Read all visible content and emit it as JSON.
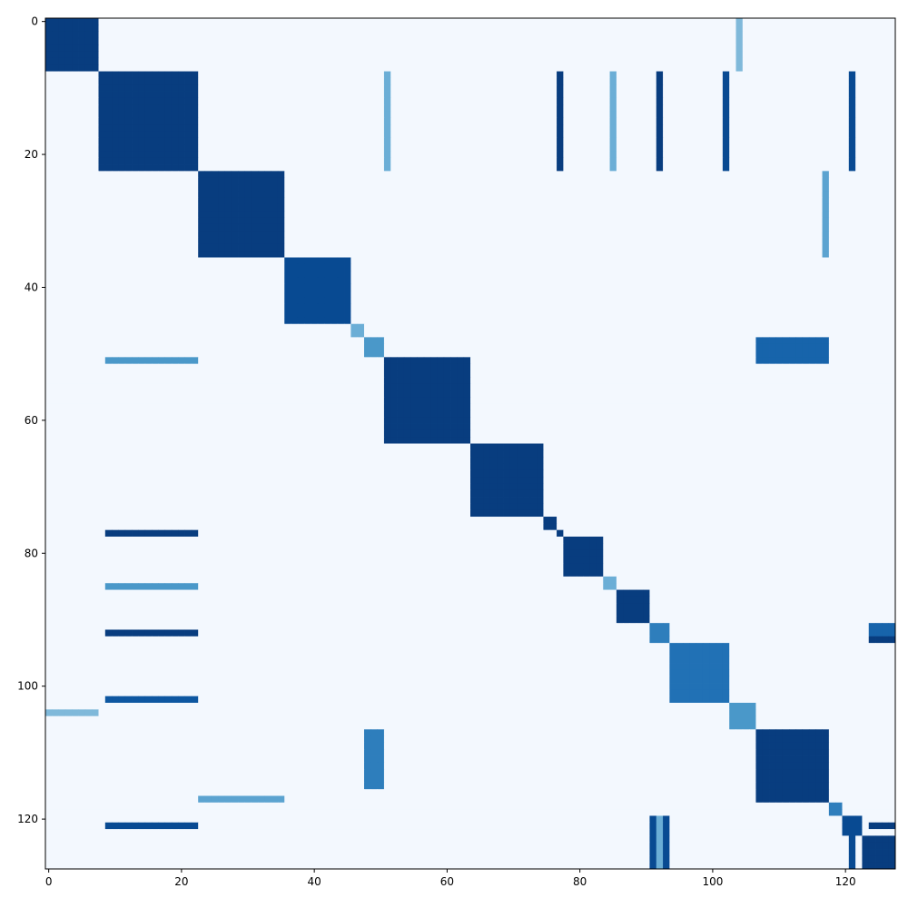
{
  "chart_data": {
    "type": "heatmap",
    "title": "",
    "xlabel": "",
    "ylabel": "",
    "n_rows": 128,
    "n_cols": 128,
    "colormap": "Blues",
    "color_min": "#f7fbff",
    "color_max": "#08306b",
    "value_range": [
      0,
      1
    ],
    "x_ticks": [
      0,
      20,
      40,
      60,
      80,
      100,
      120
    ],
    "y_ticks": [
      0,
      20,
      40,
      60,
      80,
      100,
      120
    ],
    "x_tick_labels": [
      "0",
      "20",
      "40",
      "60",
      "80",
      "100",
      "120"
    ],
    "y_tick_labels": [
      "0",
      "20",
      "40",
      "60",
      "80",
      "100",
      "120"
    ],
    "xlim": [
      -0.5,
      127.5
    ],
    "ylim": [
      127.5,
      -0.5
    ],
    "background_value": 0.02,
    "blocks": [
      {
        "start": 0,
        "end": 8,
        "value": 0.95
      },
      {
        "start": 8,
        "end": 23,
        "value": 0.95
      },
      {
        "start": 23,
        "end": 36,
        "value": 0.95
      },
      {
        "start": 36,
        "end": 46,
        "value": 0.9
      },
      {
        "start": 46,
        "end": 48,
        "value": 0.5
      },
      {
        "start": 48,
        "end": 51,
        "value": 0.6
      },
      {
        "start": 51,
        "end": 64,
        "value": 0.95
      },
      {
        "start": 64,
        "end": 75,
        "value": 0.95
      },
      {
        "start": 75,
        "end": 77,
        "value": 0.95
      },
      {
        "start": 77,
        "end": 78,
        "value": 0.95
      },
      {
        "start": 78,
        "end": 84,
        "value": 0.95
      },
      {
        "start": 84,
        "end": 86,
        "value": 0.5
      },
      {
        "start": 86,
        "end": 91,
        "value": 0.95
      },
      {
        "start": 91,
        "end": 94,
        "value": 0.7
      },
      {
        "start": 94,
        "end": 103,
        "value": 0.75
      },
      {
        "start": 103,
        "end": 107,
        "value": 0.6
      },
      {
        "start": 107,
        "end": 118,
        "value": 0.95
      },
      {
        "start": 118,
        "end": 120,
        "value": 0.7
      },
      {
        "start": 120,
        "end": 123,
        "value": 0.9
      },
      {
        "start": 123,
        "end": 128,
        "value": 0.95
      }
    ],
    "stripes": [
      {
        "rows": [
          77
        ],
        "cols": [
          [
            9,
            23
          ]
        ],
        "value": 0.95
      },
      {
        "rows": [
          92
        ],
        "cols": [
          [
            9,
            23
          ]
        ],
        "value": 0.95
      },
      {
        "rows": [
          102
        ],
        "cols": [
          [
            9,
            23
          ]
        ],
        "value": 0.85
      },
      {
        "rows": [
          121
        ],
        "cols": [
          [
            9,
            23
          ]
        ],
        "value": 0.9
      },
      {
        "rows": [
          51
        ],
        "cols": [
          [
            9,
            23
          ]
        ],
        "value": 0.6
      },
      {
        "rows": [
          85
        ],
        "cols": [
          [
            9,
            23
          ]
        ],
        "value": 0.6
      },
      {
        "rows": [
          117
        ],
        "cols": [
          [
            23,
            36
          ]
        ],
        "value": 0.55
      },
      {
        "rows": [
          48,
          49,
          50,
          51
        ],
        "cols": [
          [
            107,
            118
          ]
        ],
        "value": 0.8
      },
      {
        "rows": [
          91,
          92
        ],
        "cols": [
          [
            124,
            128
          ]
        ],
        "value": 0.8
      },
      {
        "rows": [
          93
        ],
        "cols": [
          [
            124,
            128
          ]
        ],
        "value": 0.95
      },
      {
        "rows": [
          121
        ],
        "cols": [
          [
            124,
            128
          ]
        ],
        "value": 0.95
      },
      {
        "rows": [
          104
        ],
        "cols": [
          [
            0,
            8
          ]
        ],
        "value": 0.45
      },
      {
        "cols": [
          77
        ],
        "rows": [
          [
            8,
            23
          ]
        ],
        "value": 0.95
      },
      {
        "cols": [
          92
        ],
        "rows": [
          [
            8,
            23
          ]
        ],
        "value": 0.95
      },
      {
        "cols": [
          102
        ],
        "rows": [
          [
            8,
            23
          ]
        ],
        "value": 0.9
      },
      {
        "cols": [
          121
        ],
        "rows": [
          [
            8,
            23
          ]
        ],
        "value": 0.9
      },
      {
        "cols": [
          51
        ],
        "rows": [
          [
            8,
            23
          ]
        ],
        "value": 0.5
      },
      {
        "cols": [
          85
        ],
        "rows": [
          [
            8,
            23
          ]
        ],
        "value": 0.5
      },
      {
        "cols": [
          104
        ],
        "rows": [
          [
            0,
            8
          ]
        ],
        "value": 0.45
      },
      {
        "cols": [
          48,
          49,
          50
        ],
        "rows": [
          [
            107,
            116
          ]
        ],
        "value": 0.7
      },
      {
        "cols": [
          117
        ],
        "rows": [
          [
            23,
            36
          ]
        ],
        "value": 0.55
      },
      {
        "cols": [
          91,
          93
        ],
        "rows": [
          [
            120,
            128
          ]
        ],
        "value": 0.9
      },
      {
        "cols": [
          92
        ],
        "rows": [
          [
            120,
            128
          ]
        ],
        "value": 0.5
      },
      {
        "cols": [
          121
        ],
        "rows": [
          [
            120,
            128
          ]
        ],
        "value": 0.9
      }
    ]
  }
}
